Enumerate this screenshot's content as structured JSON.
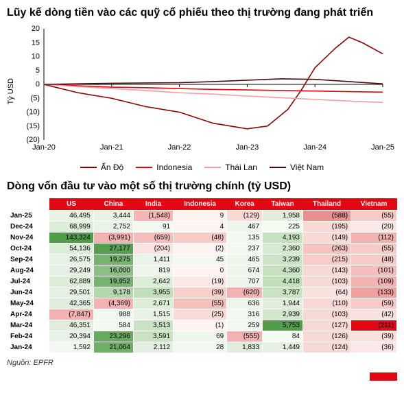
{
  "chart": {
    "title": "Lũy kế dòng tiền vào các quỹ cổ phiếu theo thị trường đang phát triển",
    "type": "line",
    "ylabel": "Tỷ USD",
    "ylim": [
      -20,
      20
    ],
    "ytick_step": 5,
    "yticks": [
      20,
      15,
      10,
      5,
      0,
      -5,
      -10,
      -15,
      -20
    ],
    "ytick_labels": [
      "20",
      "15",
      "10",
      "5",
      "0",
      "(5)",
      "(10)",
      "(15)",
      "(20)"
    ],
    "xlim": [
      "Jan-20",
      "Jan-25"
    ],
    "xticks": [
      "Jan-20",
      "Jan-21",
      "Jan-22",
      "Jan-23",
      "Jan-24",
      "Jan-25"
    ],
    "background_color": "#ffffff",
    "grid_color": "#cccccc",
    "axis_color": "#000000",
    "axis_fontsize": 11,
    "line_width": 1.6,
    "series": [
      {
        "name": "Ấn Độ",
        "color": "#8b0000",
        "data": [
          [
            0,
            0
          ],
          [
            0.5,
            -3
          ],
          [
            1,
            -5
          ],
          [
            1.5,
            -8
          ],
          [
            2,
            -10
          ],
          [
            2.5,
            -14
          ],
          [
            3,
            -16
          ],
          [
            3.3,
            -15
          ],
          [
            3.6,
            -9
          ],
          [
            3.8,
            -2
          ],
          [
            4,
            6
          ],
          [
            4.3,
            13
          ],
          [
            4.5,
            17
          ],
          [
            4.7,
            15
          ],
          [
            5,
            11
          ]
        ]
      },
      {
        "name": "Indonesia",
        "color": "#e30613",
        "data": [
          [
            0,
            0
          ],
          [
            0.5,
            -0.5
          ],
          [
            1,
            -1
          ],
          [
            1.5,
            -1.2
          ],
          [
            2,
            -1.5
          ],
          [
            2.5,
            -1.8
          ],
          [
            3,
            -2
          ],
          [
            3.5,
            -2.2
          ],
          [
            4,
            -2.4
          ],
          [
            4.5,
            -2.6
          ],
          [
            5,
            -2.8
          ]
        ]
      },
      {
        "name": "Thái Lan",
        "color": "#f29ca6",
        "data": [
          [
            0,
            0
          ],
          [
            0.5,
            -0.8
          ],
          [
            1,
            -1.5
          ],
          [
            1.5,
            -2.2
          ],
          [
            2,
            -3
          ],
          [
            2.5,
            -3.5
          ],
          [
            3,
            -4.2
          ],
          [
            3.5,
            -4.8
          ],
          [
            4,
            -5.4
          ],
          [
            4.5,
            -6.0
          ],
          [
            5,
            -6.5
          ]
        ]
      },
      {
        "name": "Việt Nam",
        "color": "#4a0c0c",
        "data": [
          [
            0,
            0
          ],
          [
            0.5,
            0.2
          ],
          [
            1,
            0.4
          ],
          [
            1.5,
            0.5
          ],
          [
            2,
            0.6
          ],
          [
            2.5,
            1.0
          ],
          [
            3,
            1.5
          ],
          [
            3.5,
            2.0
          ],
          [
            4,
            1.8
          ],
          [
            4.5,
            1.0
          ],
          [
            5,
            0.2
          ]
        ]
      }
    ]
  },
  "table": {
    "title": "Dòng vốn đầu tư vào một số thị trường chính (tỷ USD)",
    "header_bg": "#e30613",
    "header_color": "#ffffff",
    "label_fontsize": 10,
    "columns": [
      "",
      "US",
      "China",
      "India",
      "Indonesia",
      "Korea",
      "Taiwan",
      "Thailand",
      "Vietnam"
    ],
    "rows": [
      {
        "label": "Jan-25",
        "cells": [
          "46,495",
          "3,444",
          "(1,548)",
          "9",
          "(129)",
          "1,958",
          "(588)",
          "(55)"
        ]
      },
      {
        "label": "Dec-24",
        "cells": [
          "68,999",
          "2,752",
          "91",
          "4",
          "467",
          "225",
          "(195)",
          "(20)"
        ]
      },
      {
        "label": "Nov-24",
        "cells": [
          "143,324",
          "(3,991)",
          "(659)",
          "(48)",
          "135",
          "4,193",
          "(149)",
          "(112)"
        ]
      },
      {
        "label": "Oct-24",
        "cells": [
          "54,136",
          "27,177",
          "(204)",
          "(2)",
          "237",
          "2,360",
          "(263)",
          "(55)"
        ]
      },
      {
        "label": "Sep-24",
        "cells": [
          "26,575",
          "19,275",
          "1,411",
          "45",
          "465",
          "3,239",
          "(215)",
          "(48)"
        ]
      },
      {
        "label": "Aug-24",
        "cells": [
          "29,249",
          "16,000",
          "819",
          "0",
          "674",
          "4,360",
          "(143)",
          "(101)"
        ]
      },
      {
        "label": "Jul-24",
        "cells": [
          "62,889",
          "19,952",
          "2,642",
          "(19)",
          "707",
          "4,418",
          "(103)",
          "(109)"
        ]
      },
      {
        "label": "Jun-24",
        "cells": [
          "29,501",
          "9,178",
          "3,955",
          "(39)",
          "(620)",
          "3,787",
          "(64)",
          "(133)"
        ]
      },
      {
        "label": "May-24",
        "cells": [
          "42,365",
          "(4,369)",
          "2,671",
          "(55)",
          "636",
          "1,944",
          "(110)",
          "(59)"
        ]
      },
      {
        "label": "Apr-24",
        "cells": [
          "(7,847)",
          "988",
          "1,515",
          "(25)",
          "316",
          "2,939",
          "(103)",
          "(42)"
        ]
      },
      {
        "label": "Mar-24",
        "cells": [
          "46,351",
          "584",
          "3,513",
          "(1)",
          "259",
          "5,753",
          "(127)",
          "(211)"
        ]
      },
      {
        "label": "Feb-24",
        "cells": [
          "20,394",
          "23,296",
          "3,591",
          "69",
          "(555)",
          "84",
          "(126)",
          "(39)"
        ]
      },
      {
        "label": "Jan-24",
        "cells": [
          "1,592",
          "21,064",
          "2,112",
          "28",
          "1,833",
          "1,449",
          "(124)",
          "(36)"
        ]
      }
    ],
    "heat_colors": [
      [
        "#e8f3e6",
        "#e8f3e6",
        "#f5b5b5",
        "#fdf4f2",
        "#f9d9d6",
        "#e0eddc",
        "#e98f8f",
        "#f7cbc8"
      ],
      [
        "#dcedd8",
        "#eaf3e7",
        "#f3f9f1",
        "#fdf4f2",
        "#eef6ec",
        "#f5faf3",
        "#f9d9d6",
        "#fbe8e6"
      ],
      [
        "#4f9d49",
        "#f3b1b1",
        "#f5bdbd",
        "#f7cbc8",
        "#f3f9f1",
        "#c6e1c0",
        "#f9d9d6",
        "#f3b1b1"
      ],
      [
        "#dcedd8",
        "#569f50",
        "#fbe3e0",
        "#fdf4f2",
        "#f3f9f1",
        "#d6e9d1",
        "#f7c2bf",
        "#f7cbc8"
      ],
      [
        "#e8f3e6",
        "#76b36f",
        "#eaf3e7",
        "#f3f9f1",
        "#eef6ec",
        "#cde4c7",
        "#f8cdc9",
        "#f7cbc8"
      ],
      [
        "#e6f1e3",
        "#8bbf84",
        "#eef6ec",
        "#fdf4f2",
        "#eef6ec",
        "#c6e1c0",
        "#f9d9d6",
        "#f5bdbd"
      ],
      [
        "#dcedd8",
        "#76b36f",
        "#dcedd8",
        "#fbe8e6",
        "#eef6ec",
        "#c1dfba",
        "#f9d9d6",
        "#f3b1b1"
      ],
      [
        "#e6f1e3",
        "#b3d7ad",
        "#c1dfba",
        "#f7cfcb",
        "#f3b1b1",
        "#c8e2c2",
        "#f9e1de",
        "#ef9f9f"
      ],
      [
        "#e0eddc",
        "#f3b1b1",
        "#dcedd8",
        "#f5c0bc",
        "#eef6ec",
        "#e0eddc",
        "#f9d9d6",
        "#f7cbc8"
      ],
      [
        "#f3b1b1",
        "#f1f8ef",
        "#e8f3e6",
        "#f9dbd8",
        "#f1f8ef",
        "#d1e6cb",
        "#f9d9d6",
        "#f9e1de"
      ],
      [
        "#e0eddc",
        "#f3f9f1",
        "#cbe3c5",
        "#fdf4f2",
        "#f1f8ef",
        "#4f9d49",
        "#f9d9d6",
        "#e30613"
      ],
      [
        "#e8f3e6",
        "#66aa5f",
        "#c8e2c2",
        "#eef6ec",
        "#f3b1b1",
        "#f5faf3",
        "#f9d9d6",
        "#f9e1de"
      ],
      [
        "#f3f9f1",
        "#6eae67",
        "#e3efe0",
        "#f1f8ef",
        "#e0eddc",
        "#e6f1e3",
        "#f9d9d6",
        "#fbe8e6"
      ]
    ]
  },
  "source": "Nguồn: EPFR"
}
